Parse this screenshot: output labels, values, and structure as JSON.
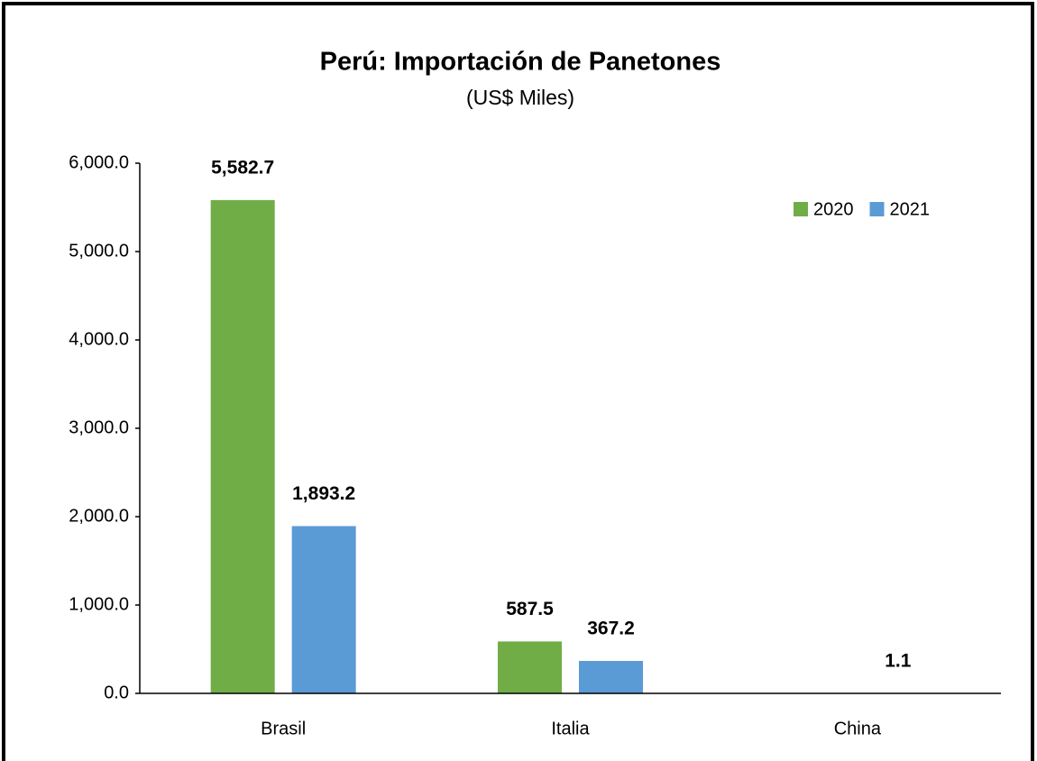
{
  "chart_data": {
    "type": "bar",
    "title": "Perú: Importación de Panetones",
    "subtitle": "(US$ Miles)",
    "categories": [
      "Brasil",
      "Italia",
      "China"
    ],
    "series": [
      {
        "name": "2020",
        "color": "#70ad47",
        "values": [
          5582.7,
          587.5,
          null
        ],
        "value_labels": [
          "5,582.7",
          "587.5",
          null
        ]
      },
      {
        "name": "2021",
        "color": "#5b9bd5",
        "values": [
          1893.2,
          367.2,
          1.1
        ],
        "value_labels": [
          "1,893.2",
          "367.2",
          "1.1"
        ]
      }
    ],
    "ylim": [
      0,
      6000
    ],
    "yticks": [
      {
        "value": 0,
        "label": "0.0"
      },
      {
        "value": 1000,
        "label": "1,000.0"
      },
      {
        "value": 2000,
        "label": "2,000.0"
      },
      {
        "value": 3000,
        "label": "3,000.0"
      },
      {
        "value": 4000,
        "label": "4,000.0"
      },
      {
        "value": 5000,
        "label": "5,000.0"
      },
      {
        "value": 6000,
        "label": "6,000.0"
      }
    ],
    "grid": false,
    "legend": "top-right"
  }
}
